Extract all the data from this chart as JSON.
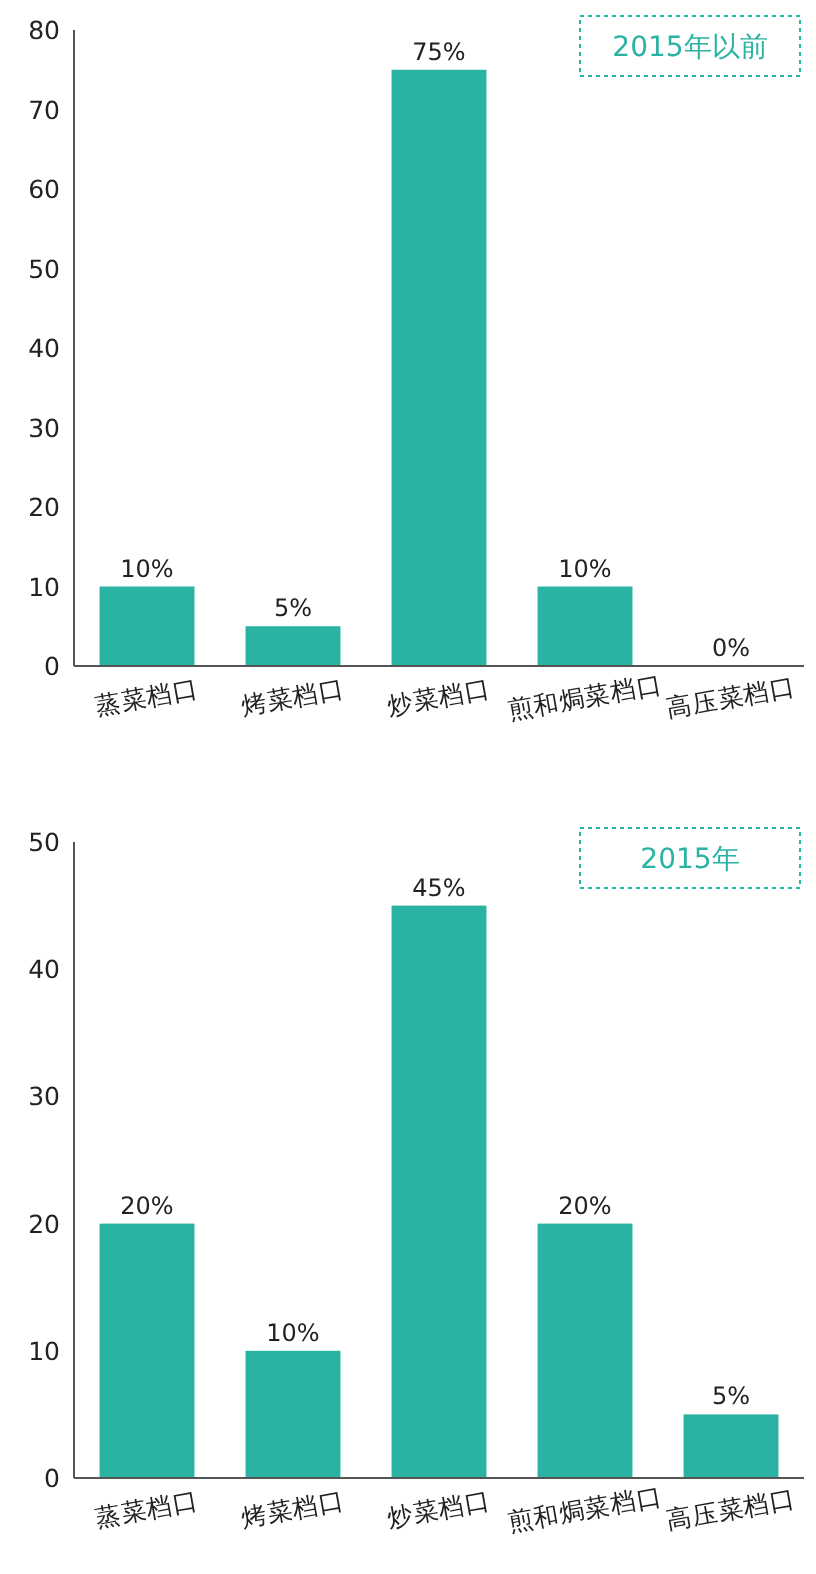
{
  "chart_data": [
    {
      "type": "bar",
      "title": "2015年以前",
      "categories": [
        "蒸菜档口",
        "烤菜档口",
        "炒菜档口",
        "煎和焗菜档口",
        "高压菜档口"
      ],
      "values": [
        10,
        5,
        75,
        10,
        0
      ],
      "value_labels": [
        "10%",
        "5%",
        "75%",
        "10%",
        "0%"
      ],
      "color": "#2ab3a2",
      "ylim": [
        0,
        80
      ],
      "yticks": [
        0,
        10,
        20,
        30,
        40,
        50,
        60,
        70,
        80
      ]
    },
    {
      "type": "bar",
      "title": "2015年",
      "categories": [
        "蒸菜档口",
        "烤菜档口",
        "炒菜档口",
        "煎和焗菜档口",
        "高压菜档口"
      ],
      "values": [
        20,
        10,
        45,
        20,
        5
      ],
      "value_labels": [
        "20%",
        "10%",
        "45%",
        "20%",
        "5%"
      ],
      "color": "#2ab3a2",
      "ylim": [
        0,
        50
      ],
      "yticks": [
        0,
        10,
        20,
        30,
        40,
        50
      ]
    }
  ]
}
